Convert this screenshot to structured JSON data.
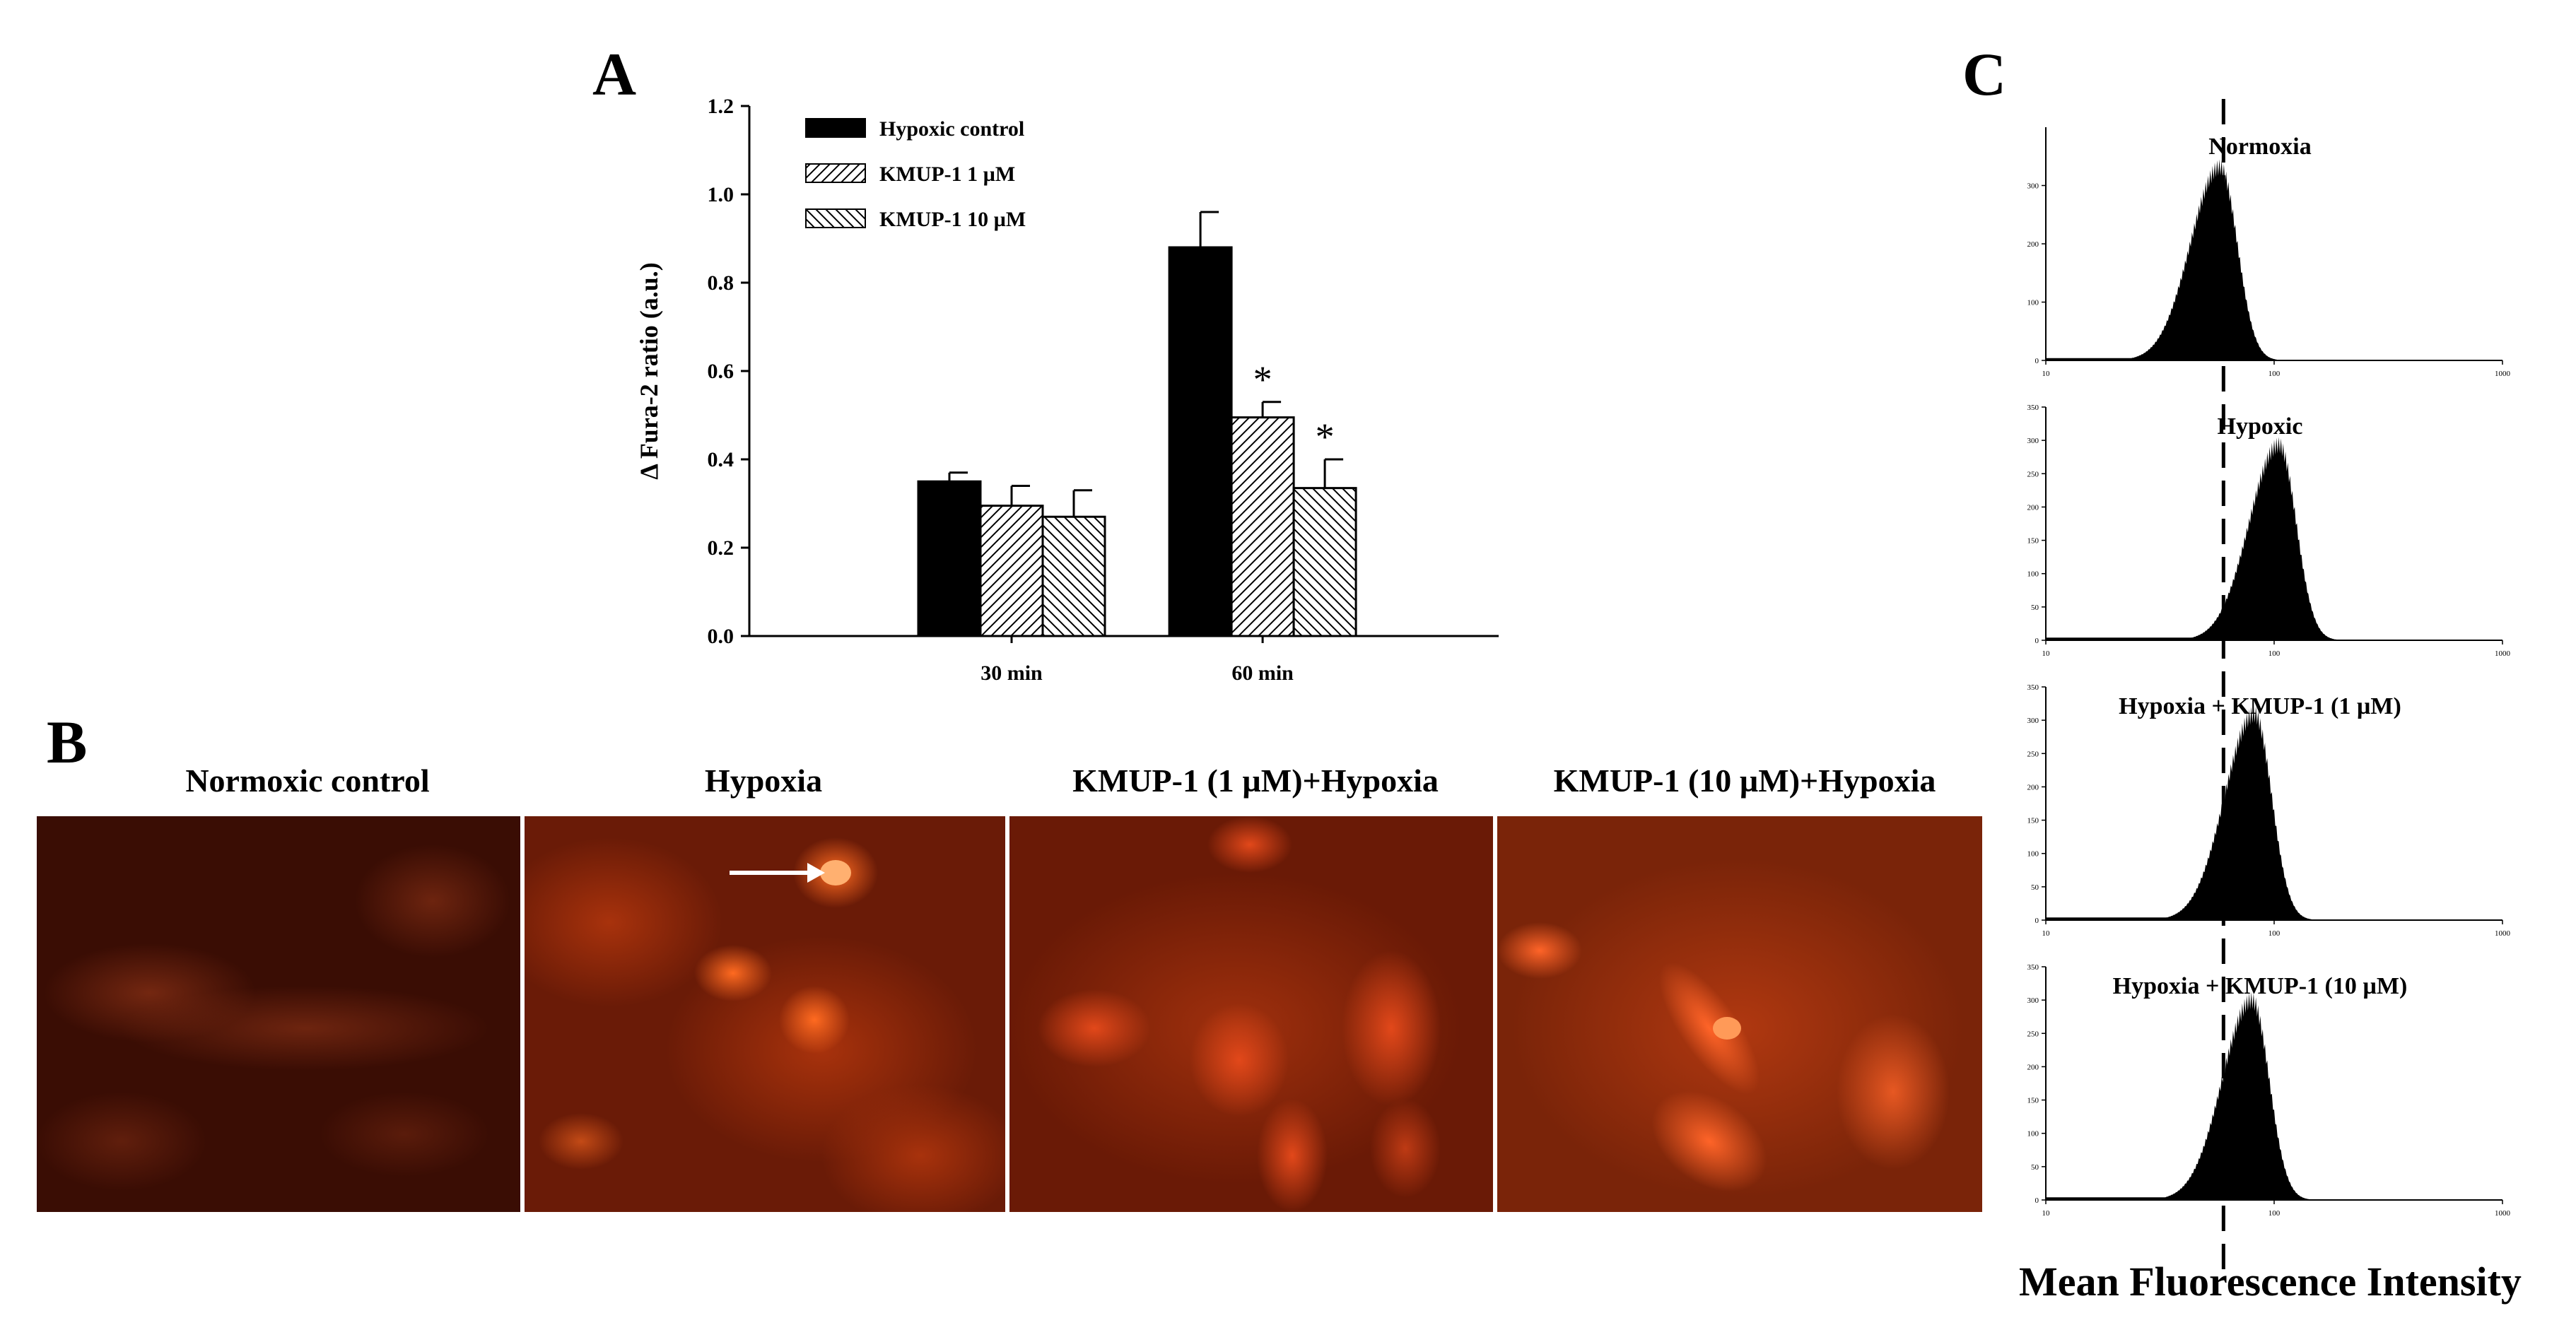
{
  "panel_labels": {
    "a": "A",
    "b": "B",
    "c": "C"
  },
  "chart_data": [
    {
      "type": "bar",
      "panel": "A",
      "ylabel": "Δ Fura-2 ratio (a.u.)",
      "xlabel": "",
      "ylim": [
        0.0,
        1.2
      ],
      "yticks": [
        "0.0",
        "0.2",
        "0.4",
        "0.6",
        "0.8",
        "1.0",
        "1.2"
      ],
      "categories": [
        "30 min",
        "60 min"
      ],
      "legend_position": "top-left",
      "series": [
        {
          "name": "Hypoxic control",
          "values": [
            0.35,
            0.88
          ],
          "errors": [
            0.02,
            0.08
          ],
          "fill": "solid",
          "significance": [
            "",
            ""
          ]
        },
        {
          "name": "KMUP-1 1 µM",
          "values": [
            0.295,
            0.495
          ],
          "errors": [
            0.045,
            0.035
          ],
          "fill": "hatch-right",
          "significance": [
            "",
            "*"
          ]
        },
        {
          "name": "KMUP-1 10 µM",
          "values": [
            0.27,
            0.335
          ],
          "errors": [
            0.06,
            0.065
          ],
          "fill": "hatch-left",
          "significance": [
            "",
            "*"
          ]
        }
      ]
    },
    {
      "type": "area",
      "panel": "C",
      "xlabel": "Mean Fluorescence Intensity",
      "xscale": "log",
      "xlim": [
        10,
        1000
      ],
      "xticks": [
        "10",
        "100",
        "1000"
      ],
      "reference_line_x": 60,
      "histograms": [
        {
          "title": "Normoxia",
          "yticks": [
            "0",
            "100",
            "200",
            "300"
          ],
          "ymax": 400,
          "peak_x": 58,
          "peak_y": 345
        },
        {
          "title": "Hypoxic",
          "yticks": [
            "0",
            "50",
            "100",
            "150",
            "200",
            "250",
            "300",
            "350"
          ],
          "ymax": 350,
          "peak_x": 105,
          "peak_y": 305
        },
        {
          "title": "Hypoxia + KMUP-1 (1 µM)",
          "yticks": [
            "0",
            "50",
            "100",
            "150",
            "200",
            "250",
            "300",
            "350"
          ],
          "ymax": 350,
          "peak_x": 82,
          "peak_y": 322
        },
        {
          "title": "Hypoxia + KMUP-1 (10 µM)",
          "yticks": [
            "0",
            "50",
            "100",
            "150",
            "200",
            "250",
            "300",
            "350"
          ],
          "ymax": 350,
          "peak_x": 80,
          "peak_y": 312
        }
      ]
    }
  ],
  "micrographs": [
    {
      "title": "Normoxic control",
      "brightness": "dim"
    },
    {
      "title": "Hypoxia",
      "brightness": "bright",
      "arrow": true
    },
    {
      "title": "KMUP-1 (1 µM)+Hypoxia",
      "brightness": "medium"
    },
    {
      "title": "KMUP-1 (10 µM)+Hypoxia",
      "brightness": "medium"
    }
  ],
  "colors": {
    "bar_fill": "#000000",
    "micro_bg": "#5a1606",
    "cell": "#ff5a1e"
  }
}
